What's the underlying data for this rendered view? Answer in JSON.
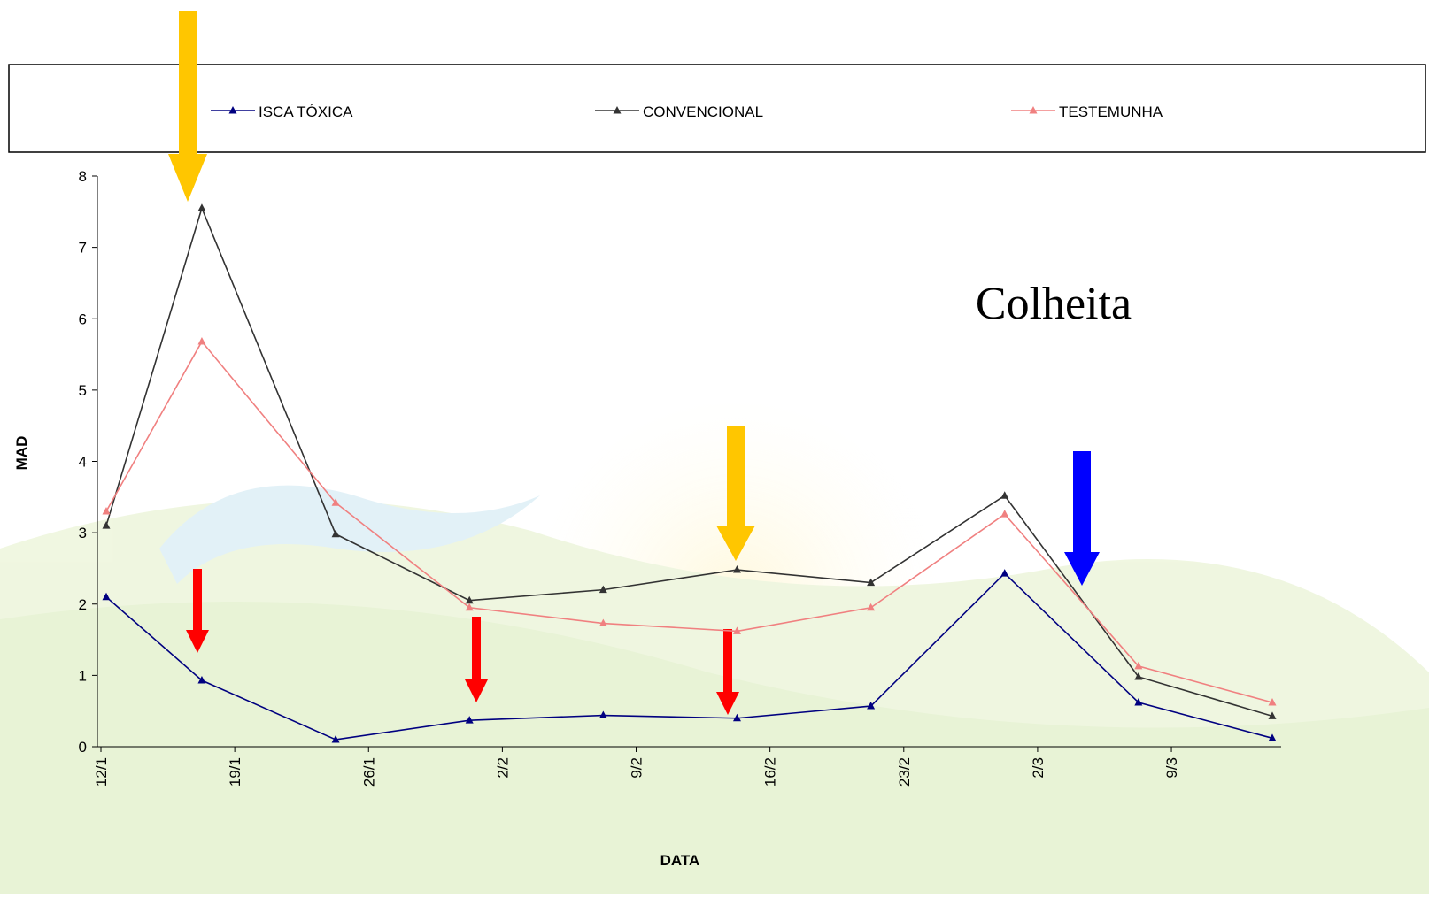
{
  "chart_data": {
    "type": "line",
    "x": [
      "12/1",
      "17/1",
      "24/1",
      "31/1",
      "7/2",
      "14/2",
      "21/2",
      "28/2",
      "7/3",
      "14/3"
    ],
    "series": [
      {
        "name": "ISCA TÓXICA",
        "color": "#000080",
        "values": [
          2.1,
          0.93,
          0.1,
          0.37,
          0.44,
          0.4,
          0.57,
          2.43,
          0.62,
          0.12
        ]
      },
      {
        "name": "CONVENCIONAL",
        "color": "#333333",
        "values": [
          3.1,
          7.55,
          2.98,
          2.05,
          2.2,
          2.48,
          2.3,
          3.52,
          0.98,
          0.43
        ]
      },
      {
        "name": "TESTEMUNHA",
        "color": "#f08080",
        "values": [
          3.3,
          5.68,
          3.42,
          1.95,
          1.73,
          1.62,
          1.95,
          3.26,
          1.13,
          0.62
        ]
      }
    ],
    "xlabel": "DATA",
    "ylabel": "MAD",
    "xlim": [
      "12/1",
      "14/3"
    ],
    "xticks": [
      "12/1",
      "19/1",
      "26/1",
      "2/2",
      "9/2",
      "16/2",
      "23/2",
      "2/3",
      "9/3"
    ],
    "ylim": [
      0,
      8
    ],
    "yticks": [
      0,
      1,
      2,
      3,
      4,
      5,
      6,
      7,
      8
    ],
    "legend": "top",
    "annotation": "Colheita"
  }
}
